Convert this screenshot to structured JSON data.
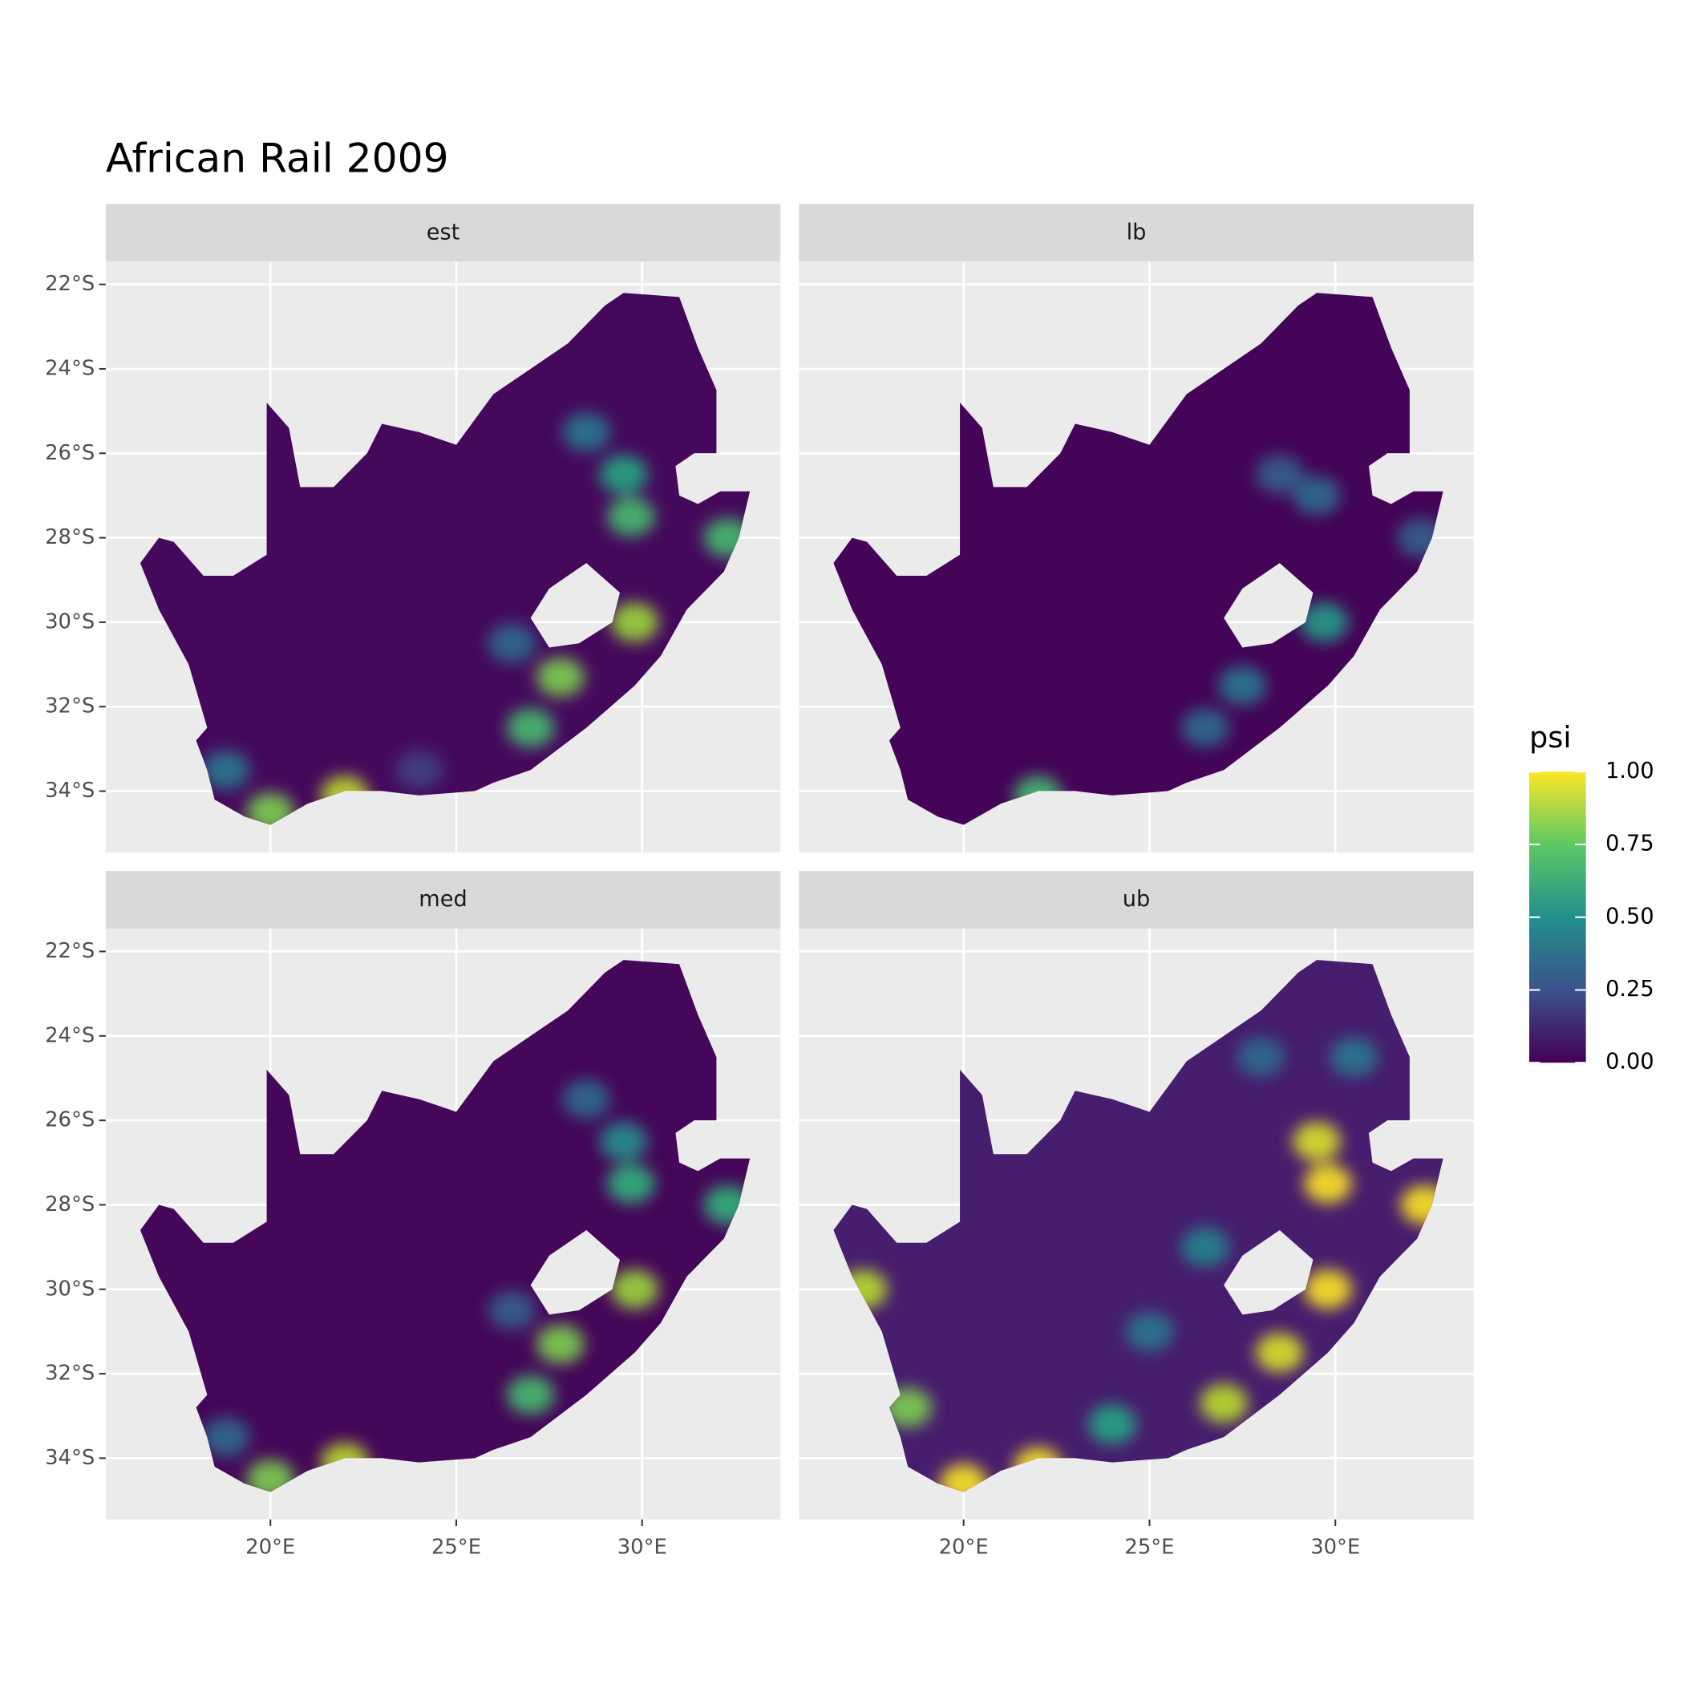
{
  "chart_data": {
    "type": "raster-map",
    "title": "African Rail 2009",
    "legend_title": "psi",
    "xlim": [
      15.57,
      33.72
    ],
    "ylim": [
      -35.45,
      -21.46
    ],
    "xticks": [
      {
        "value": 20,
        "label": "20°E"
      },
      {
        "value": 25,
        "label": "25°E"
      },
      {
        "value": 30,
        "label": "30°E"
      }
    ],
    "yticks": [
      {
        "value": -22,
        "label": "22°S"
      },
      {
        "value": -24,
        "label": "24°S"
      },
      {
        "value": -26,
        "label": "26°S"
      },
      {
        "value": -28,
        "label": "28°S"
      },
      {
        "value": -30,
        "label": "30°S"
      },
      {
        "value": -32,
        "label": "32°S"
      },
      {
        "value": -34,
        "label": "34°S"
      }
    ],
    "color_lim": [
      0,
      1
    ],
    "color_ticks": [
      {
        "value": 0,
        "label": "0.00"
      },
      {
        "value": 0.25,
        "label": "0.25"
      },
      {
        "value": 0.5,
        "label": "0.50"
      },
      {
        "value": 0.75,
        "label": "0.75"
      },
      {
        "value": 1,
        "label": "1.00"
      }
    ],
    "grid": true,
    "facets": [
      {
        "label": "est",
        "base_psi": 0.03,
        "cells": {
          "lon": [
            29.5,
            29.7,
            29.8,
            27.8,
            27.0,
            32.3,
            22.0,
            20.0,
            18.8,
            28.5,
            26.5,
            24.0
          ],
          "lat": [
            -26.5,
            -27.5,
            -30.0,
            -31.3,
            -32.5,
            -28.0,
            -34.1,
            -34.5,
            -33.5,
            -25.5,
            -30.5,
            -33.5
          ],
          "psi": [
            0.6,
            0.7,
            0.85,
            0.8,
            0.7,
            0.7,
            0.9,
            0.8,
            0.4,
            0.4,
            0.35,
            0.2
          ]
        }
      },
      {
        "label": "lb",
        "base_psi": 0.01,
        "cells": {
          "lon": [
            29.7,
            29.5,
            28.5,
            22.0,
            27.5,
            26.5,
            32.3
          ],
          "lat": [
            -30.0,
            -27.0,
            -26.5,
            -34.1,
            -31.5,
            -32.5,
            -28.0
          ],
          "psi": [
            0.55,
            0.35,
            0.3,
            0.7,
            0.4,
            0.35,
            0.3
          ]
        }
      },
      {
        "label": "med",
        "base_psi": 0.02,
        "cells": {
          "lon": [
            29.5,
            29.7,
            29.8,
            27.8,
            27.0,
            32.3,
            22.0,
            20.0,
            18.8,
            28.5,
            26.5
          ],
          "lat": [
            -26.5,
            -27.5,
            -30.0,
            -31.3,
            -32.5,
            -28.0,
            -34.1,
            -34.5,
            -33.5,
            -25.5,
            -30.5
          ],
          "psi": [
            0.5,
            0.65,
            0.85,
            0.8,
            0.7,
            0.65,
            0.9,
            0.8,
            0.35,
            0.35,
            0.3
          ]
        }
      },
      {
        "label": "ub",
        "base_psi": 0.1,
        "cells": {
          "lon": [
            29.5,
            29.8,
            29.8,
            28.5,
            27.0,
            32.4,
            22.0,
            20.0,
            17.3,
            18.5,
            26.5,
            25.0,
            24.0,
            28.0,
            30.5
          ],
          "lat": [
            -26.5,
            -27.5,
            -30.0,
            -31.5,
            -32.7,
            -28.0,
            -34.2,
            -34.6,
            -30.0,
            -32.8,
            -29.0,
            -31.0,
            -33.2,
            -24.5,
            -24.5
          ],
          "psi": [
            0.95,
            1.0,
            1.0,
            0.95,
            0.9,
            1.0,
            1.0,
            1.0,
            0.9,
            0.8,
            0.45,
            0.4,
            0.6,
            0.35,
            0.4
          ]
        }
      }
    ]
  }
}
